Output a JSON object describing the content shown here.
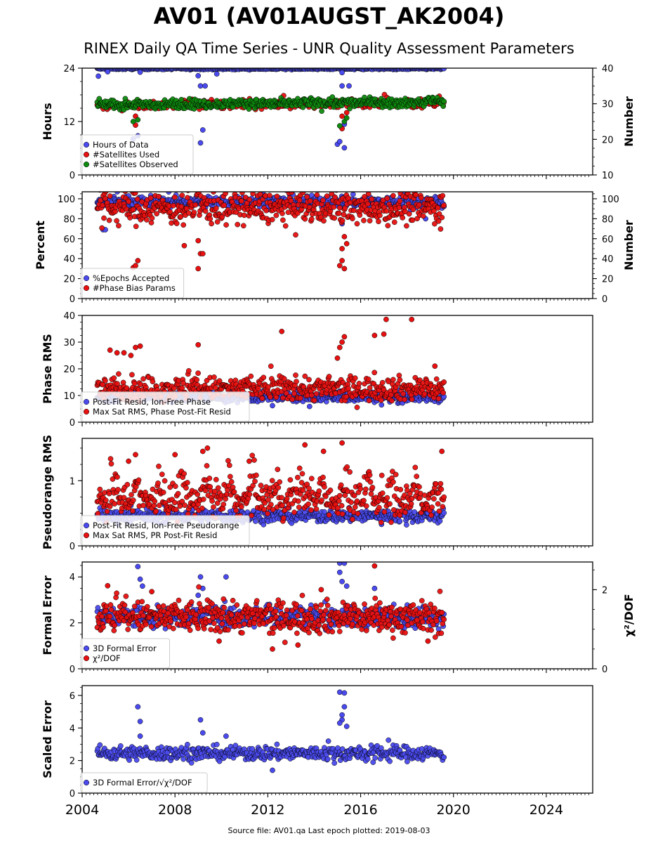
{
  "title": "AV01 (AV01AUGST_AK2004)",
  "subtitle": "RINEX Daily QA Time Series - UNR Quality Assessment Parameters",
  "footer": "Source file: AV01.qa Last epoch plotted: 2019-08-03",
  "colors": {
    "blue": "#4a4aee",
    "red": "#e81010",
    "green": "#0f8a0f",
    "edge": "#000000"
  },
  "chart_data": [
    {
      "type": "scatter",
      "ylabel": "Hours",
      "ylabel_right": "Number",
      "xlim": [
        2004,
        2026
      ],
      "ylim": [
        0,
        24
      ],
      "yticks": [
        0,
        12,
        24
      ],
      "ylim_right": [
        10,
        40
      ],
      "yticks_right": [
        10,
        20,
        30,
        40
      ],
      "legend": "lower-left",
      "series": [
        {
          "name": "Hours of Data",
          "color": "blue",
          "axis": "left",
          "base": 23.9,
          "noise": 0.1,
          "outliers": [
            [
              2004.7,
              22.2
            ],
            [
              2006.5,
              23.1
            ],
            [
              2009.0,
              22.3
            ],
            [
              2009.1,
              20.0
            ],
            [
              2009.3,
              20.0
            ],
            [
              2009.8,
              22.7
            ],
            [
              2015.2,
              20.0
            ],
            [
              2015.5,
              20.0
            ],
            [
              2005.1,
              23.2
            ],
            [
              2006.2,
              8.1
            ],
            [
              2006.4,
              8.8
            ],
            [
              2009.1,
              7.2
            ],
            [
              2009.2,
              10.1
            ],
            [
              2015.0,
              6.9
            ],
            [
              2015.1,
              7.5
            ],
            [
              2015.3,
              6.1
            ],
            [
              2015.3,
              11.4
            ],
            [
              2015.2,
              23.0
            ]
          ]
        },
        {
          "name": "#Satellites Used",
          "color": "red",
          "axis": "right",
          "base": 29.5,
          "noise": 0.6,
          "trend": 1.0,
          "outliers": [
            [
              2006.3,
              24.0
            ],
            [
              2006.3,
              26.5
            ],
            [
              2015.2,
              23.0
            ],
            [
              2015.2,
              26.5
            ],
            [
              2015.4,
              27.5
            ]
          ]
        },
        {
          "name": "#Satellites Observed",
          "color": "green",
          "axis": "right",
          "base": 29.7,
          "noise": 0.6,
          "trend": 1.0,
          "outliers": [
            [
              2006.2,
              25.0
            ],
            [
              2006.4,
              25.5
            ],
            [
              2015.1,
              23.8
            ],
            [
              2015.3,
              25.0
            ],
            [
              2015.4,
              26.0
            ]
          ]
        }
      ]
    },
    {
      "type": "scatter",
      "ylabel": "Percent",
      "ylabel_right": "Number",
      "xlim": [
        2004,
        2026
      ],
      "ylim": [
        0,
        107
      ],
      "yticks": [
        0,
        20,
        40,
        60,
        80,
        100
      ],
      "ylim_right": [
        0,
        107
      ],
      "yticks_right": [
        0,
        20,
        40,
        60,
        80,
        100
      ],
      "legend": "lower-left",
      "series": [
        {
          "name": "%Epochs Accepted",
          "color": "blue",
          "axis": "left",
          "base": 97,
          "noise": 3,
          "outliers": [
            [
              2004.9,
              69
            ],
            [
              2005.0,
              69
            ],
            [
              2006.4,
              82
            ],
            [
              2015.2,
              75
            ],
            [
              2018.8,
              80
            ]
          ]
        },
        {
          "name": "#Phase Bias Params",
          "color": "red",
          "axis": "right",
          "base": 91,
          "noise": 8,
          "outliers": [
            [
              2006.2,
              31
            ],
            [
              2006.3,
              33
            ],
            [
              2006.4,
              38
            ],
            [
              2009.0,
              30
            ],
            [
              2009.1,
              45
            ],
            [
              2009.2,
              45
            ],
            [
              2009.0,
              58
            ],
            [
              2015.1,
              33
            ],
            [
              2015.2,
              38
            ],
            [
              2015.3,
              30
            ],
            [
              2015.2,
              50
            ],
            [
              2015.4,
              55
            ],
            [
              2015.3,
              62
            ],
            [
              2008.4,
              53
            ]
          ]
        }
      ]
    },
    {
      "type": "scatter",
      "ylabel": "Phase RMS",
      "xlim": [
        2004,
        2026
      ],
      "ylim": [
        0,
        40
      ],
      "yticks": [
        0,
        10,
        20,
        30,
        40
      ],
      "legend": "lower-left",
      "series": [
        {
          "name": "Post-Fit Resid, Ion-Free Phase",
          "color": "blue",
          "axis": "left",
          "base": 9.4,
          "noise": 0.9,
          "outliers": [
            [
              2012.2,
              6.2
            ],
            [
              2013.8,
              5.9
            ],
            [
              2016.9,
              6.5
            ]
          ]
        },
        {
          "name": "Max Sat RMS, Phase Post-Fit Resid",
          "color": "red",
          "axis": "left",
          "base": 12.5,
          "noise": 2.2,
          "outliers": [
            [
              2005.2,
              27
            ],
            [
              2005.5,
              26
            ],
            [
              2005.8,
              26
            ],
            [
              2006.1,
              25
            ],
            [
              2006.3,
              28
            ],
            [
              2006.5,
              28.5
            ],
            [
              2009.0,
              29
            ],
            [
              2012.6,
              34
            ],
            [
              2015.0,
              24
            ],
            [
              2015.1,
              28
            ],
            [
              2015.2,
              30
            ],
            [
              2015.3,
              32
            ],
            [
              2016.6,
              32.5
            ],
            [
              2017.0,
              33
            ],
            [
              2017.1,
              38.5
            ],
            [
              2018.2,
              38.5
            ],
            [
              2019.2,
              21
            ]
          ]
        }
      ]
    },
    {
      "type": "scatter",
      "ylabel": "Pseudorange RMS",
      "xlim": [
        2004,
        2026
      ],
      "ylim": [
        0,
        1.65
      ],
      "yticks": [
        0,
        1
      ],
      "legend": "lower-left",
      "series": [
        {
          "name": "Post-Fit Resid, Ion-Free Pseudorange",
          "color": "blue",
          "axis": "left",
          "base": 0.46,
          "noise": 0.05,
          "outliers": [
            [
              2006.1,
              0.62
            ],
            [
              2010.1,
              0.38
            ],
            [
              2016.9,
              0.33
            ]
          ]
        },
        {
          "name": "Max Sat RMS, PR Post-Fit Resid",
          "color": "red",
          "axis": "left",
          "base": 0.68,
          "noise": 0.12,
          "seasonal": 0.25,
          "outliers": [
            [
              2006.3,
              1.4
            ],
            [
              2008.0,
              1.4
            ],
            [
              2009.2,
              1.45
            ],
            [
              2009.4,
              1.5
            ],
            [
              2013.6,
              1.55
            ],
            [
              2014.4,
              1.45
            ],
            [
              2015.2,
              1.58
            ],
            [
              2019.5,
              1.45
            ],
            [
              2006.0,
              1.3
            ],
            [
              2011.2,
              1.3
            ]
          ]
        }
      ]
    },
    {
      "type": "scatter",
      "ylabel": "Formal Error",
      "ylabel_right": "χ²/DOF",
      "xlim": [
        2004,
        2026
      ],
      "ylim": [
        0,
        4.65
      ],
      "yticks": [
        0,
        2,
        4
      ],
      "ylim_right": [
        0,
        2.7
      ],
      "yticks_right": [
        0,
        2
      ],
      "legend": "lower-left",
      "series": [
        {
          "name": "3D Formal Error",
          "color": "blue",
          "axis": "left",
          "base": 2.25,
          "noise": 0.22,
          "outliers": [
            [
              2006.4,
              4.45
            ],
            [
              2006.5,
              3.9
            ],
            [
              2006.6,
              3.6
            ],
            [
              2009.1,
              4.0
            ],
            [
              2009.2,
              3.5
            ],
            [
              2009.0,
              3.2
            ],
            [
              2010.2,
              4.0
            ],
            [
              2015.1,
              4.6
            ],
            [
              2015.3,
              4.6
            ],
            [
              2015.1,
              4.2
            ],
            [
              2015.2,
              3.8
            ],
            [
              2015.4,
              3.6
            ],
            [
              2016.6,
              3.5
            ]
          ]
        },
        {
          "name": "χ²/DOF",
          "color": "red",
          "axis": "right",
          "base": 1.3,
          "noise": 0.2,
          "outliers": [
            [
              2012.2,
              0.5
            ],
            [
              2013.3,
              0.6
            ],
            [
              2016.6,
              2.6
            ],
            [
              2007.0,
              1.95
            ],
            [
              2014.3,
              2.0
            ],
            [
              2018.9,
              0.7
            ],
            [
              2005.1,
              2.1
            ],
            [
              2009.9,
              0.7
            ]
          ]
        }
      ]
    },
    {
      "type": "scatter",
      "ylabel": "Scaled Error",
      "xlim": [
        2004,
        2026
      ],
      "ylim": [
        0,
        6.6
      ],
      "yticks": [
        0,
        2,
        4,
        6
      ],
      "xticks": [
        2004,
        2008,
        2012,
        2016,
        2020,
        2024
      ],
      "legend": "lower-left",
      "series": [
        {
          "name": "3D Formal Error/√χ²/DOF",
          "color": "blue",
          "axis": "left",
          "base": 2.45,
          "noise": 0.22,
          "outliers": [
            [
              2006.4,
              5.3
            ],
            [
              2006.5,
              4.4
            ],
            [
              2006.5,
              3.5
            ],
            [
              2009.1,
              4.5
            ],
            [
              2009.2,
              3.7
            ],
            [
              2010.2,
              3.5
            ],
            [
              2012.2,
              1.4
            ],
            [
              2015.1,
              6.2
            ],
            [
              2015.3,
              6.15
            ],
            [
              2015.3,
              5.3
            ],
            [
              2015.2,
              4.8
            ],
            [
              2015.2,
              4.5
            ],
            [
              2015.1,
              4.3
            ],
            [
              2015.4,
              4.1
            ]
          ]
        }
      ]
    }
  ],
  "time_span": {
    "start": 2004.65,
    "end": 2019.59
  }
}
